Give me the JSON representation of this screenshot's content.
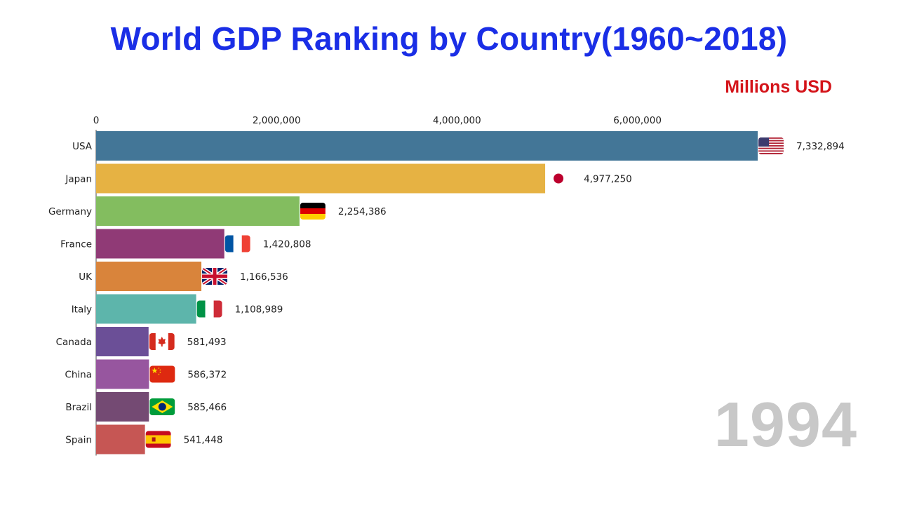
{
  "title": "World GDP Ranking by Country(1960~2018)",
  "units": "Millions USD",
  "year": "1994",
  "colors": {
    "title": "#1a2ee6",
    "units": "#d4141a",
    "year": "#c8c8c8"
  },
  "chart_data": {
    "type": "bar",
    "orientation": "horizontal",
    "title": "World GDP Ranking by Country(1960~2018)",
    "xlabel": "Millions USD",
    "ylabel": "",
    "xlim": [
      0,
      7332894
    ],
    "xticks": [
      0,
      2000000,
      4000000,
      6000000
    ],
    "xtick_labels": [
      "0",
      "2,000,000",
      "4,000,000",
      "6,000,000"
    ],
    "axis_position": "top",
    "grid": false,
    "bars": [
      {
        "category": "USA",
        "value": 7332894,
        "label": "7,332,894",
        "color": "#437697",
        "flag": "usa-flag-icon"
      },
      {
        "category": "Japan",
        "value": 4977250,
        "label": "4,977,250",
        "color": "#e6b243",
        "flag": "japan-flag-icon"
      },
      {
        "category": "Germany",
        "value": 2254386,
        "label": "2,254,386",
        "color": "#83bd5f",
        "flag": "germany-flag-icon"
      },
      {
        "category": "France",
        "value": 1420808,
        "label": "1,420,808",
        "color": "#903a76",
        "flag": "france-flag-icon"
      },
      {
        "category": "UK",
        "value": 1166536,
        "label": "1,166,536",
        "color": "#d9843b",
        "flag": "uk-flag-icon"
      },
      {
        "category": "Italy",
        "value": 1108989,
        "label": "1,108,989",
        "color": "#5db5ab",
        "flag": "italy-flag-icon"
      },
      {
        "category": "Canada",
        "value": 581493,
        "label": "581,493",
        "color": "#6b4f97",
        "flag": "canada-flag-icon"
      },
      {
        "category": "China",
        "value": 586372,
        "label": "586,372",
        "color": "#97569f",
        "flag": "china-flag-icon"
      },
      {
        "category": "Brazil",
        "value": 585466,
        "label": "585,466",
        "color": "#744a73",
        "flag": "brazil-flag-icon"
      },
      {
        "category": "Spain",
        "value": 541448,
        "label": "541,448",
        "color": "#c65654",
        "flag": "spain-flag-icon"
      }
    ]
  }
}
